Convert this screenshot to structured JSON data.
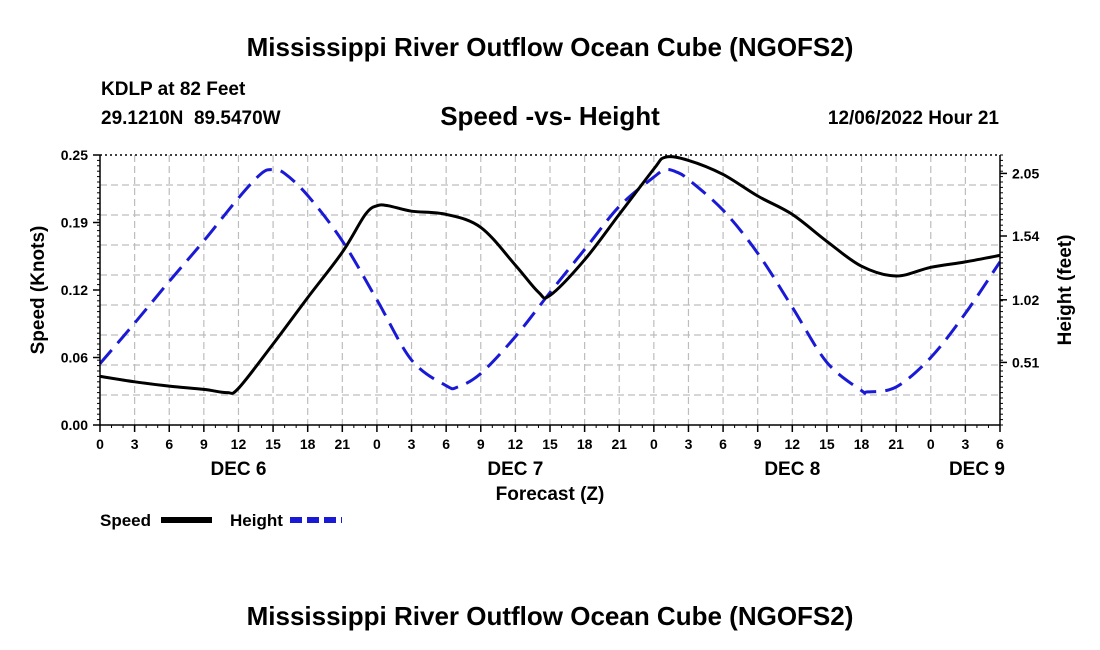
{
  "chart_data": {
    "type": "line",
    "title": "Mississippi River Outflow Ocean Cube (NGOFS2)",
    "footer_title": "Mississippi River Outflow Ocean Cube (NGOFS2)",
    "station": "KDLP at 82 Feet",
    "location": "29.1210N  89.5470W",
    "subtitle": "Speed -vs- Height",
    "timestamp": "12/06/2022 Hour 21",
    "xlabel": "Forecast (Z)",
    "ylabel_left": "Speed (Knots)",
    "ylabel_right": "Height (feet)",
    "x_range": [
      0,
      78
    ],
    "x_ticks": [
      {
        "x": 0,
        "label": "0"
      },
      {
        "x": 3,
        "label": "3"
      },
      {
        "x": 6,
        "label": "6"
      },
      {
        "x": 9,
        "label": "9"
      },
      {
        "x": 12,
        "label": "12"
      },
      {
        "x": 15,
        "label": "15"
      },
      {
        "x": 18,
        "label": "18"
      },
      {
        "x": 21,
        "label": "21"
      },
      {
        "x": 24,
        "label": "0"
      },
      {
        "x": 27,
        "label": "3"
      },
      {
        "x": 30,
        "label": "6"
      },
      {
        "x": 33,
        "label": "9"
      },
      {
        "x": 36,
        "label": "12"
      },
      {
        "x": 39,
        "label": "15"
      },
      {
        "x": 42,
        "label": "18"
      },
      {
        "x": 45,
        "label": "21"
      },
      {
        "x": 48,
        "label": "0"
      },
      {
        "x": 51,
        "label": "3"
      },
      {
        "x": 54,
        "label": "6"
      },
      {
        "x": 57,
        "label": "9"
      },
      {
        "x": 60,
        "label": "12"
      },
      {
        "x": 63,
        "label": "15"
      },
      {
        "x": 66,
        "label": "18"
      },
      {
        "x": 69,
        "label": "21"
      },
      {
        "x": 72,
        "label": "0"
      },
      {
        "x": 75,
        "label": "3"
      },
      {
        "x": 78,
        "label": "6"
      }
    ],
    "day_labels": [
      {
        "x": 12,
        "label": "DEC 6"
      },
      {
        "x": 36,
        "label": "DEC 7"
      },
      {
        "x": 60,
        "label": "DEC 8"
      },
      {
        "x": 76,
        "label": "DEC 9"
      }
    ],
    "y_left": {
      "range": [
        0,
        0.25
      ],
      "ticks": [
        "0.00",
        "0.06",
        "0.12",
        "0.19",
        "0.25"
      ]
    },
    "y_right": {
      "range": [
        0,
        2.2
      ],
      "ticks": [
        "0.51",
        "1.02",
        "1.54",
        "2.05"
      ]
    },
    "grid": true,
    "series": [
      {
        "name": "Speed",
        "axis": "left",
        "color": "#000000",
        "dash": "solid",
        "x": [
          0,
          3,
          6,
          9,
          11,
          12,
          15,
          18,
          21,
          23,
          24,
          25,
          27,
          30,
          33,
          36,
          38,
          39,
          42,
          45,
          48,
          49,
          51,
          54,
          57,
          60,
          63,
          66,
          69,
          72,
          75,
          78
        ],
        "y": [
          0.045,
          0.04,
          0.036,
          0.033,
          0.03,
          0.034,
          0.075,
          0.118,
          0.16,
          0.195,
          0.203,
          0.203,
          0.198,
          0.195,
          0.183,
          0.148,
          0.123,
          0.12,
          0.153,
          0.195,
          0.237,
          0.248,
          0.245,
          0.232,
          0.212,
          0.195,
          0.17,
          0.147,
          0.138,
          0.146,
          0.151,
          0.157
        ]
      },
      {
        "name": "Height",
        "axis": "right",
        "color": "#1a1ad6",
        "dash": "dashed",
        "x": [
          0,
          3,
          6,
          9,
          12,
          14,
          15,
          16,
          18,
          21,
          24,
          27,
          30,
          31,
          33,
          36,
          39,
          42,
          45,
          48,
          49,
          50,
          51,
          54,
          57,
          60,
          63,
          66,
          66.5,
          69,
          72,
          75,
          78
        ],
        "y": [
          0.5,
          0.83,
          1.17,
          1.5,
          1.85,
          2.05,
          2.08,
          2.05,
          1.87,
          1.5,
          1.02,
          0.53,
          0.32,
          0.31,
          0.42,
          0.72,
          1.08,
          1.43,
          1.78,
          2.02,
          2.08,
          2.06,
          2.0,
          1.75,
          1.4,
          0.96,
          0.51,
          0.28,
          0.27,
          0.31,
          0.55,
          0.91,
          1.33
        ]
      }
    ],
    "legend": [
      {
        "label": "Speed",
        "color": "#000000",
        "dash": "solid"
      },
      {
        "label": "Height",
        "color": "#1a1ad6",
        "dash": "dashed"
      }
    ]
  }
}
